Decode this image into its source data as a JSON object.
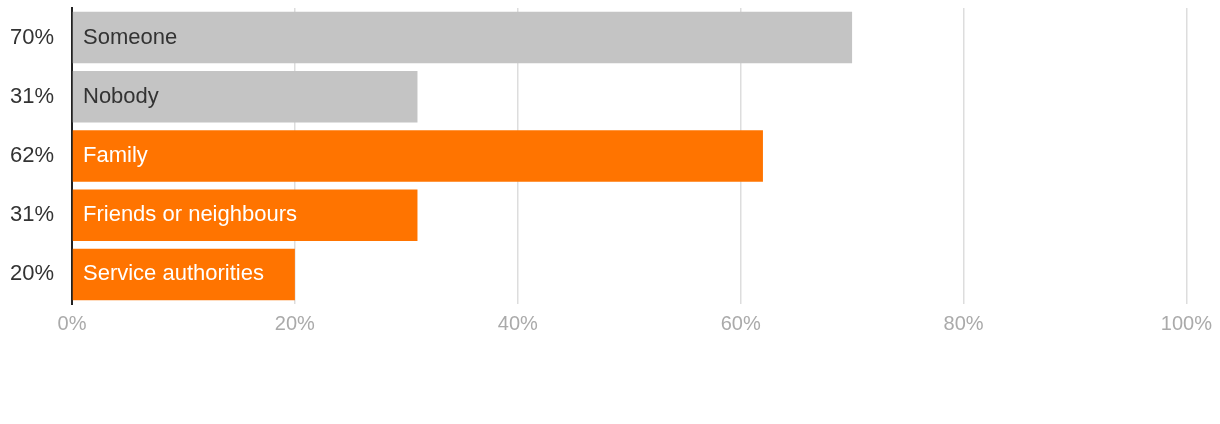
{
  "chart_data": {
    "type": "bar",
    "orientation": "horizontal",
    "categories": [
      "Someone",
      "Nobody",
      "Family",
      "Friends or neighbours",
      "Service authorities"
    ],
    "values": [
      70,
      31,
      62,
      31,
      20
    ],
    "value_labels": [
      "70%",
      "31%",
      "62%",
      "31%",
      "20%"
    ],
    "colors": [
      "#c4c4c4",
      "#c4c4c4",
      "#ff7400",
      "#ff7400",
      "#ff7400"
    ],
    "xlim": [
      0,
      100
    ],
    "xticks": [
      {
        "value": 0,
        "label": "0%"
      },
      {
        "value": 20,
        "label": "20%"
      },
      {
        "value": 40,
        "label": "40%"
      },
      {
        "value": 60,
        "label": "60%"
      },
      {
        "value": 80,
        "label": "80%"
      },
      {
        "value": 100,
        "label": "100%"
      }
    ],
    "grid": "x"
  }
}
